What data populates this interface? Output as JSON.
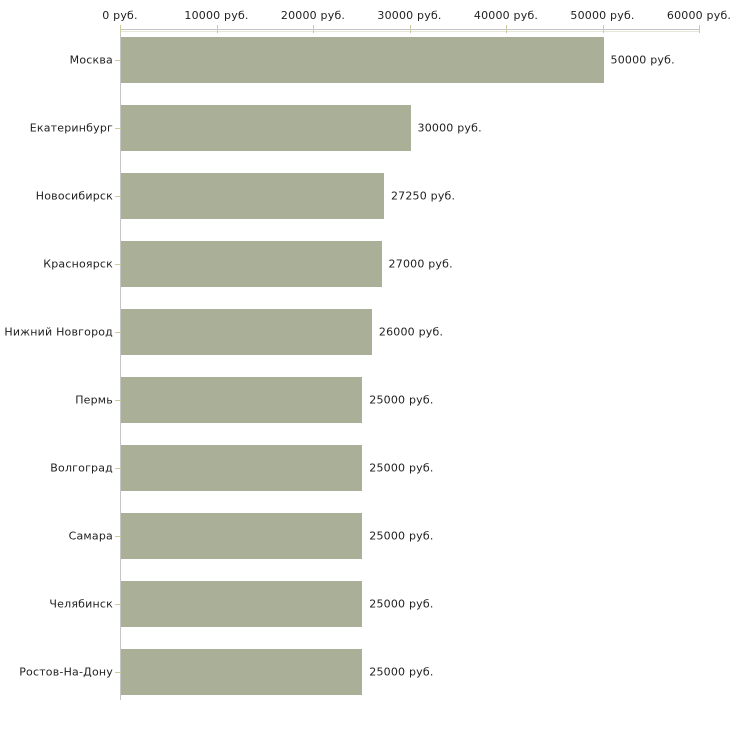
{
  "chart_data": {
    "type": "bar",
    "orientation": "horizontal",
    "title": "",
    "categories": [
      "Москва",
      "Екатеринбург",
      "Новосибирск",
      "Красноярск",
      "Нижний Новгород",
      "Пермь",
      "Волгоград",
      "Самара",
      "Челябинск",
      "Ростов-На-Дону"
    ],
    "values": [
      50000,
      30000,
      27250,
      27000,
      26000,
      25000,
      25000,
      25000,
      25000,
      25000
    ],
    "value_labels": [
      "50000 руб.",
      "30000 руб.",
      "27250 руб.",
      "27000 руб.",
      "26000 руб.",
      "25000 руб.",
      "25000 руб.",
      "25000 руб.",
      "25000 руб.",
      "25000 руб."
    ],
    "x_axis": {
      "position": "top",
      "min": 0,
      "max": 60000,
      "ticks": [
        0,
        10000,
        20000,
        30000,
        40000,
        50000,
        60000
      ],
      "tick_labels": [
        "0 руб.",
        "10000 руб.",
        "20000 руб.",
        "30000 руб.",
        "40000 руб.",
        "50000 руб.",
        "60000 руб."
      ]
    },
    "grid": false,
    "legend": false,
    "colors": {
      "bar": "#aab098",
      "axis_line": "#c5c5c5",
      "axis_line_shadow": "#e7e7d8",
      "tick": "#cccca3",
      "text": "#1f1f1f",
      "background": "#ffffff"
    }
  }
}
